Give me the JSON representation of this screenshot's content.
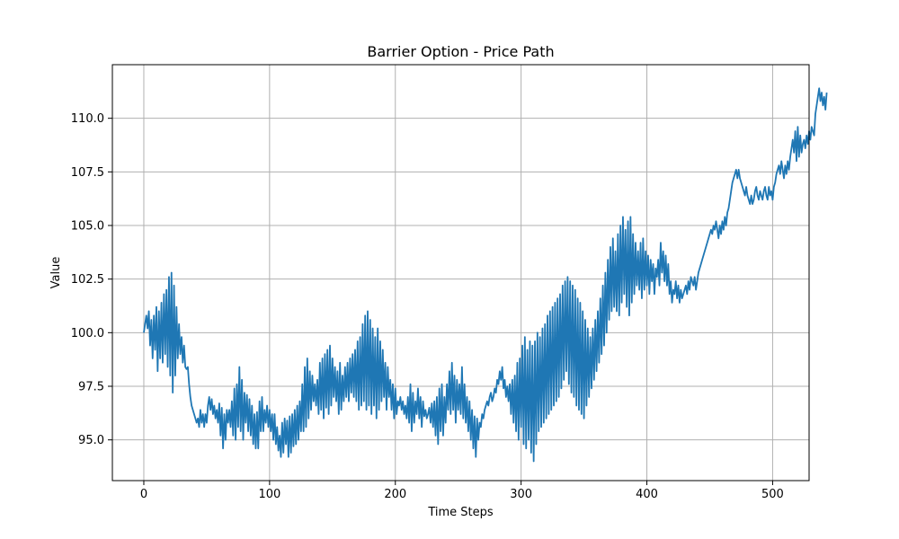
{
  "chart_data": {
    "type": "line",
    "title": "Barrier Option - Price Path",
    "xlabel": "Time Steps",
    "ylabel": "Value",
    "xlim": [
      -25,
      529
    ],
    "ylim": [
      93.1,
      112.5
    ],
    "x_ticks": [
      0,
      100,
      200,
      300,
      400,
      500
    ],
    "x_tick_labels": [
      "0",
      "100",
      "200",
      "300",
      "400",
      "500"
    ],
    "y_ticks": [
      95.0,
      97.5,
      100.0,
      102.5,
      105.0,
      107.5,
      110.0
    ],
    "y_tick_labels": [
      "95.0",
      "97.5",
      "100.0",
      "102.5",
      "105.0",
      "107.5",
      "110.0"
    ],
    "grid": true,
    "legend": "none",
    "colors": {
      "line": "#1f77b4",
      "grid": "#b0b0b0",
      "axes": "#000000"
    },
    "series": [
      {
        "x_start": 0,
        "x_step": 1,
        "values": [
          100.0,
          100.4,
          100.8,
          100.2,
          101.0,
          99.4,
          100.6,
          98.8,
          100.8,
          99.2,
          101.2,
          98.2,
          101.0,
          98.8,
          101.4,
          98.6,
          101.8,
          99.0,
          102.0,
          98.4,
          102.6,
          98.0,
          102.8,
          97.2,
          102.2,
          98.0,
          101.2,
          98.8,
          100.4,
          99.0,
          99.8,
          98.6,
          99.4,
          98.4,
          98.3,
          98.4,
          97.6,
          97.0,
          96.6,
          96.4,
          96.2,
          96.0,
          95.8,
          96.0,
          95.6,
          96.4,
          95.8,
          96.2,
          95.6,
          96.2,
          95.8,
          96.6,
          97.0,
          96.4,
          96.9,
          96.2,
          96.6,
          96.0,
          96.4,
          95.8,
          96.7,
          95.2,
          96.5,
          94.6,
          96.2,
          95.0,
          96.4,
          95.8,
          96.4,
          95.6,
          96.8,
          95.2,
          97.4,
          95.0,
          97.6,
          95.6,
          98.4,
          95.4,
          97.8,
          95.0,
          97.2,
          95.8,
          97.1,
          95.4,
          96.9,
          95.2,
          96.6,
          94.8,
          96.2,
          94.6,
          96.3,
          94.6,
          96.8,
          95.4,
          97.0,
          95.4,
          96.4,
          95.8,
          96.6,
          95.6,
          96.4,
          95.4,
          96.2,
          95.0,
          96.2,
          94.8,
          95.6,
          94.5,
          95.2,
          94.2,
          95.8,
          94.4,
          96.0,
          94.8,
          95.9,
          94.2,
          96.1,
          94.4,
          96.2,
          94.7,
          96.4,
          94.8,
          96.6,
          95.0,
          96.8,
          95.4,
          97.6,
          95.4,
          98.4,
          95.6,
          98.8,
          96.0,
          98.2,
          96.4,
          98.0,
          96.8,
          97.6,
          96.6,
          97.8,
          96.2,
          98.6,
          96.4,
          98.8,
          96.0,
          99.0,
          96.5,
          99.2,
          96.2,
          99.4,
          96.6,
          98.8,
          97.0,
          98.4,
          96.8,
          98.2,
          96.2,
          98.6,
          96.4,
          98.0,
          96.8,
          98.4,
          97.0,
          98.6,
          96.8,
          98.8,
          97.2,
          99.0,
          97.0,
          99.2,
          96.8,
          99.6,
          96.4,
          99.8,
          96.6,
          100.4,
          96.8,
          100.8,
          96.4,
          101.0,
          96.6,
          100.6,
          96.2,
          100.2,
          96.6,
          99.8,
          96.0,
          100.2,
          96.4,
          99.6,
          96.8,
          99.2,
          97.0,
          98.6,
          96.4,
          98.4,
          97.0,
          97.8,
          96.4,
          97.6,
          96.0,
          97.4,
          96.2,
          96.8,
          96.6,
          97.0,
          96.4,
          96.8,
          96.2,
          96.6,
          96.0,
          97.0,
          95.8,
          97.6,
          95.4,
          97.2,
          95.8,
          96.8,
          96.2,
          97.4,
          96.0,
          97.0,
          95.6,
          96.8,
          96.1,
          96.4,
          96.0,
          96.2,
          96.5,
          95.8,
          96.7,
          95.6,
          96.8,
          95.2,
          97.0,
          94.8,
          97.4,
          95.4,
          97.6,
          95.2,
          97.0,
          95.8,
          97.6,
          96.4,
          98.2,
          96.2,
          98.6,
          96.4,
          98.0,
          95.8,
          97.8,
          96.4,
          97.6,
          96.2,
          98.4,
          96.0,
          97.6,
          95.8,
          97.0,
          95.4,
          96.8,
          95.0,
          96.4,
          94.6,
          96.1,
          94.2,
          96.0,
          95.0,
          95.8,
          95.6,
          96.2,
          96.0,
          96.4,
          96.6,
          96.8,
          96.6,
          97.0,
          97.2,
          96.8,
          97.0,
          97.4,
          97.2,
          97.8,
          97.6,
          98.2,
          97.8,
          98.4,
          97.4,
          97.8,
          97.0,
          97.5,
          96.8,
          97.6,
          96.2,
          97.8,
          95.8,
          98.0,
          95.4,
          98.6,
          95.0,
          98.8,
          95.6,
          99.4,
          94.8,
          99.8,
          94.6,
          99.2,
          95.0,
          99.6,
          94.4,
          99.4,
          94.0,
          99.6,
          94.8,
          100.0,
          95.4,
          99.8,
          95.6,
          100.2,
          95.8,
          100.4,
          96.0,
          100.8,
          96.2,
          101.0,
          96.4,
          101.2,
          96.6,
          101.4,
          96.8,
          101.6,
          97.0,
          101.8,
          97.4,
          102.2,
          97.8,
          102.4,
          98.2,
          102.6,
          97.6,
          102.4,
          97.2,
          102.2,
          97.0,
          102.0,
          96.6,
          101.6,
          96.4,
          101.4,
          96.2,
          101.0,
          96.0,
          100.6,
          96.6,
          100.2,
          97.0,
          99.8,
          97.4,
          100.2,
          97.8,
          100.6,
          98.2,
          101.0,
          98.6,
          101.6,
          99.0,
          102.2,
          99.4,
          102.8,
          100.0,
          103.4,
          100.6,
          104.0,
          101.0,
          104.4,
          101.2,
          103.8,
          101.0,
          104.6,
          100.8,
          105.0,
          101.4,
          105.4,
          101.8,
          104.8,
          101.2,
          105.2,
          100.8,
          105.4,
          101.4,
          104.6,
          101.8,
          104.2,
          102.2,
          103.8,
          102.0,
          104.2,
          101.6,
          104.4,
          102.0,
          103.8,
          102.2,
          103.6,
          101.8,
          103.4,
          102.4,
          103.2,
          101.8,
          103.0,
          102.6,
          103.4,
          102.2,
          104.2,
          102.8,
          103.8,
          102.4,
          103.6,
          102.2,
          103.2,
          101.8,
          102.4,
          101.4,
          102.0,
          101.8,
          102.4,
          101.6,
          102.2,
          101.4,
          102.0,
          101.6,
          101.8,
          102.0,
          102.2,
          101.8,
          102.4,
          102.0,
          102.6,
          102.4,
          102.2,
          102.6,
          102.0,
          102.4,
          102.8,
          103.0,
          103.2,
          103.4,
          103.6,
          103.8,
          104.0,
          104.2,
          104.4,
          104.6,
          104.8,
          104.6,
          105.0,
          104.8,
          105.2,
          104.8,
          104.4,
          105.0,
          104.6,
          105.2,
          104.8,
          105.4,
          105.0,
          105.6,
          105.8,
          106.2,
          106.6,
          107.0,
          107.2,
          107.4,
          107.6,
          107.2,
          107.6,
          107.2,
          107.0,
          106.8,
          106.6,
          106.4,
          106.8,
          106.4,
          106.2,
          106.0,
          106.4,
          106.0,
          106.2,
          106.6,
          106.8,
          106.4,
          106.2,
          106.6,
          106.4,
          106.2,
          106.6,
          106.8,
          106.4,
          106.2,
          106.8,
          106.4,
          106.6,
          106.2,
          106.8,
          107.0,
          107.4,
          107.6,
          107.8,
          107.4,
          108.0,
          107.6,
          107.2,
          107.8,
          107.4,
          108.0,
          107.6,
          108.2,
          108.6,
          109.0,
          108.4,
          109.4,
          108.0,
          109.6,
          108.2,
          109.2,
          108.4,
          108.8,
          109.0,
          108.6,
          109.2,
          108.8,
          109.4,
          109.0,
          109.6,
          109.4,
          109.2,
          110.2,
          110.6,
          111.0,
          111.4,
          110.8,
          111.2,
          110.6,
          111.0,
          110.4,
          111.2
        ]
      }
    ]
  }
}
